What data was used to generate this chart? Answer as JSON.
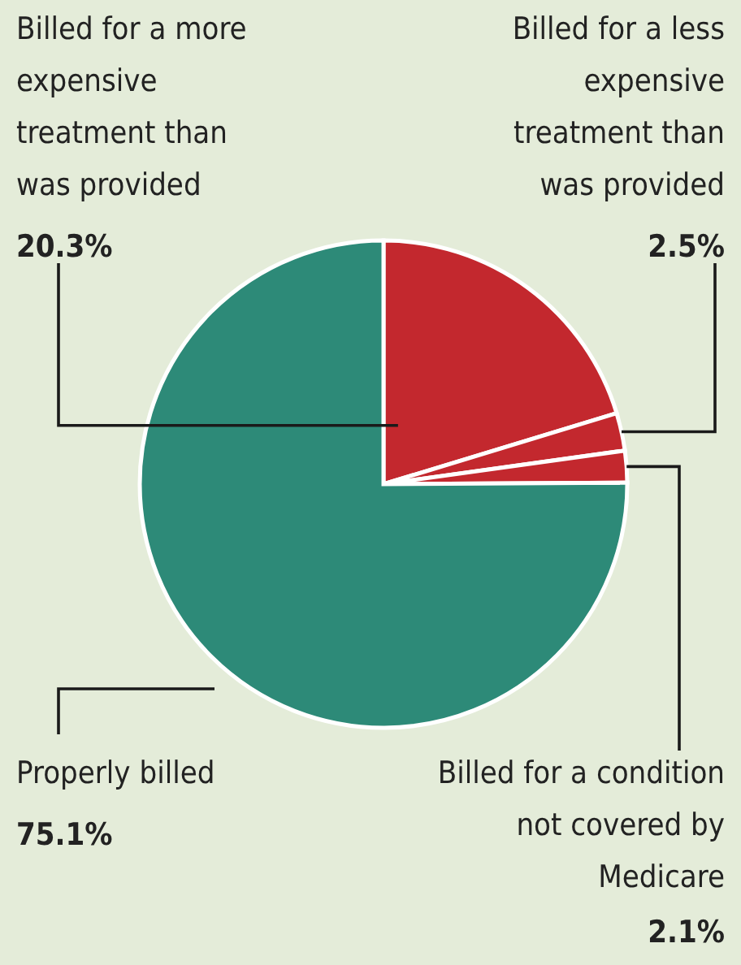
{
  "chart_data": {
    "type": "pie",
    "categories": [
      "Billed for a more expensive treatment than was provided",
      "Billed for a less expensive treatment than was provided",
      "Billed for a condition not covered by Medicare",
      "Properly billed"
    ],
    "values": [
      20.3,
      2.5,
      2.1,
      75.1
    ],
    "colors": [
      "#c3282e",
      "#c3282e",
      "#c3282e",
      "#2d8a78"
    ],
    "value_labels": [
      "20.3%",
      "2.5%",
      "2.1%",
      "75.1%"
    ]
  }
}
